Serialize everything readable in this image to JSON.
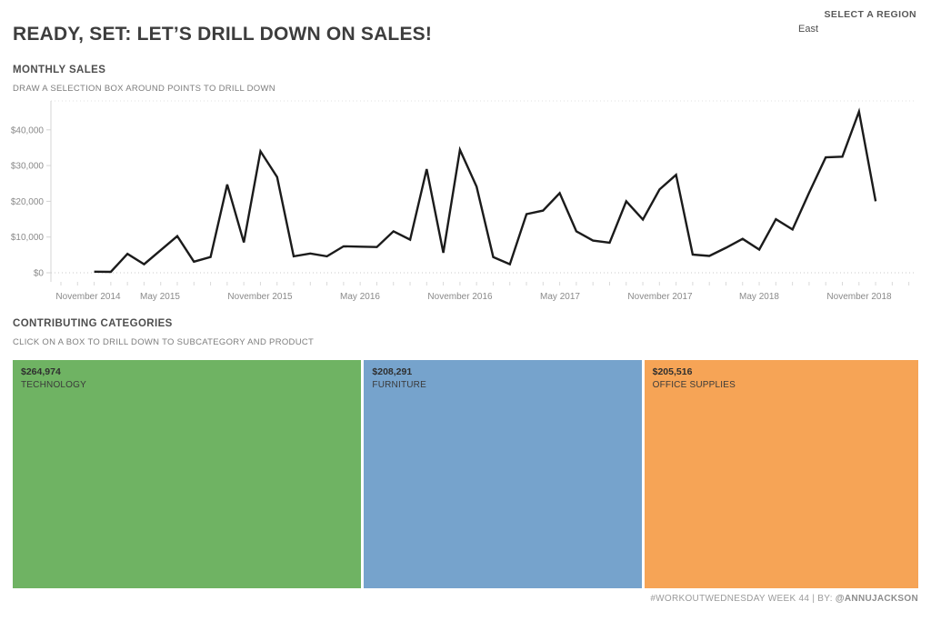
{
  "header": {
    "title": "READY, SET: LET’S DRILL DOWN ON SALES!",
    "region_selector": {
      "label": "SELECT A REGION",
      "value": "East"
    }
  },
  "monthly_sales_section": {
    "title": "MONTHLY SALES",
    "caption": "DRAW A SELECTION BOX AROUND POINTS TO DRILL DOWN"
  },
  "categories_section": {
    "title": "CONTRIBUTING CATEGORIES",
    "caption": "CLICK ON A BOX TO DRILL DOWN TO SUBCATEGORY AND PRODUCT"
  },
  "footer": {
    "credit": "#WORKOUTWEDNESDAY WEEK 44 | BY: ",
    "author": "@ANNUJACKSON"
  },
  "chart_data": [
    {
      "type": "line",
      "title": "MONTHLY SALES",
      "x": [
        "Jan 2015",
        "Feb 2015",
        "Mar 2015",
        "Apr 2015",
        "May 2015",
        "Jun 2015",
        "Jul 2015",
        "Aug 2015",
        "Sep 2015",
        "Oct 2015",
        "Nov 2015",
        "Dec 2015",
        "Jan 2016",
        "Feb 2016",
        "Mar 2016",
        "Apr 2016",
        "May 2016",
        "Jun 2016",
        "Jul 2016",
        "Aug 2016",
        "Sep 2016",
        "Oct 2016",
        "Nov 2016",
        "Dec 2016",
        "Jan 2017",
        "Feb 2017",
        "Mar 2017",
        "Apr 2017",
        "May 2017",
        "Jun 2017",
        "Jul 2017",
        "Aug 2017",
        "Sep 2017",
        "Oct 2017",
        "Nov 2017",
        "Dec 2017",
        "Jan 2018",
        "Feb 2018",
        "Mar 2018",
        "Apr 2018",
        "May 2018",
        "Jun 2018",
        "Jul 2018",
        "Aug 2018",
        "Sep 2018",
        "Oct 2018",
        "Nov 2018",
        "Dec 2018"
      ],
      "values": [
        300,
        250,
        5300,
        2400,
        6300,
        10250,
        3100,
        4400,
        24700,
        8500,
        34000,
        26800,
        4600,
        5400,
        4600,
        7400,
        7300,
        7200,
        11600,
        9250,
        29000,
        5600,
        34400,
        24100,
        4400,
        2400,
        16400,
        17400,
        22300,
        11600,
        9000,
        8400,
        20000,
        14900,
        23300,
        27400,
        5100,
        4700,
        7000,
        9500,
        6500,
        15000,
        12100,
        22400,
        32300,
        32500,
        45100,
        20000
      ],
      "xtick_labels": [
        "November 2014",
        "May 2015",
        "November 2015",
        "May 2016",
        "November 2016",
        "May 2017",
        "November 2017",
        "May 2018",
        "November 2018"
      ],
      "ytick_labels": [
        "$0",
        "$10,000",
        "$20,000",
        "$30,000",
        "$40,000"
      ],
      "ytick_values": [
        0,
        10000,
        20000,
        30000,
        40000
      ],
      "ylim": [
        0,
        48000
      ],
      "grid": "zero-line-and-top-ruler-dotted",
      "legend": "none",
      "line_color": "#1b1b1b"
    },
    {
      "type": "treemap",
      "title": "CONTRIBUTING CATEGORIES",
      "categories": [
        "TECHNOLOGY",
        "FURNITURE",
        "OFFICE SUPPLIES"
      ],
      "values": [
        264974,
        208291,
        205516
      ],
      "value_labels": [
        "$264,974",
        "$208,291",
        "$205,516"
      ],
      "colors": [
        "#6FB363",
        "#76A3CC",
        "#F6A456"
      ]
    }
  ]
}
